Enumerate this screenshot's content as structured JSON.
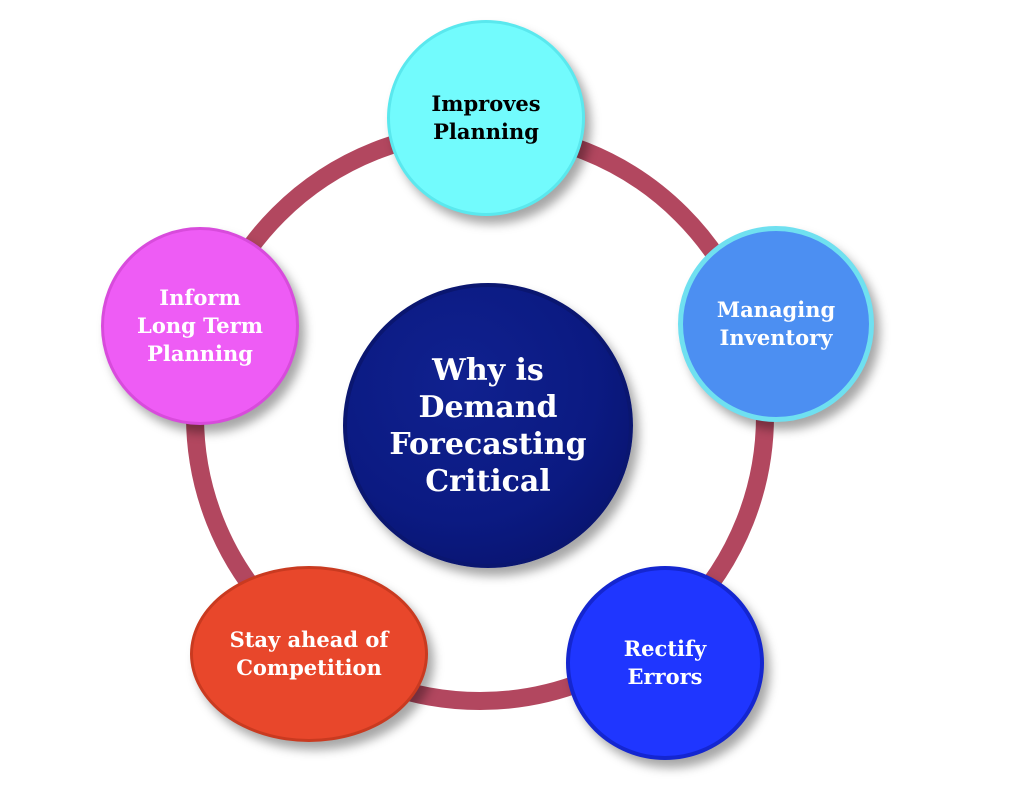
{
  "diagram": {
    "center": "Why is\nDemand\nForecasting\nCritical",
    "nodes": {
      "top": "Improves\nPlanning",
      "right": "Managing\nInventory",
      "bottom_right": "Rectify\nErrors",
      "bottom_left": "Stay ahead of\nCompetition",
      "left": "Inform\nLong Term\nPlanning"
    },
    "colors": {
      "ring": "#b2475f",
      "center": "#0b1a82",
      "top": "#72fbfd",
      "right": "#4c8ff2",
      "bottom_right": "#1f36ff",
      "bottom_left": "#e8472b",
      "left": "#ee5cf5"
    }
  }
}
